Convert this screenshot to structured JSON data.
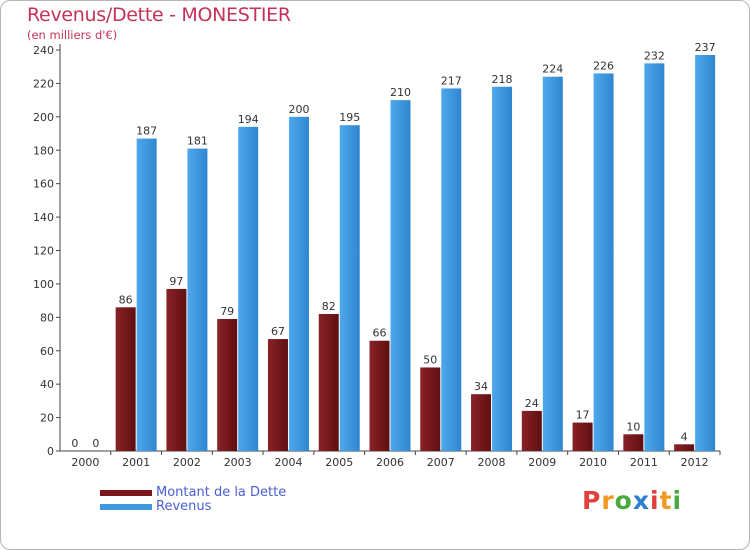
{
  "chart_data": {
    "type": "bar",
    "title": "Revenus/Dette - MONESTIER",
    "subtitle": "(en milliers d'€)",
    "categories": [
      "2000",
      "2001",
      "2002",
      "2003",
      "2004",
      "2005",
      "2006",
      "2007",
      "2008",
      "2009",
      "2010",
      "2011",
      "2012"
    ],
    "series": [
      {
        "name": "Montant de la Dette",
        "color": "#7a1518",
        "values": [
          0,
          86,
          97,
          79,
          67,
          82,
          66,
          50,
          34,
          24,
          17,
          10,
          4
        ]
      },
      {
        "name": "Revenus",
        "color": "#3f98e0",
        "values": [
          0,
          187,
          181,
          194,
          200,
          195,
          210,
          217,
          218,
          224,
          226,
          232,
          237
        ]
      }
    ],
    "ylim": [
      0,
      240
    ],
    "yticks": [
      0,
      20,
      40,
      60,
      80,
      100,
      120,
      140,
      160,
      180,
      200,
      220,
      240
    ],
    "grid": false,
    "legend_position": "bottom-left"
  },
  "legend": {
    "debt_label": "Montant de la Dette",
    "revenue_label": "Revenus"
  },
  "logo": {
    "letters": [
      "P",
      "r",
      "o",
      "x",
      "i",
      "t",
      "i"
    ],
    "colors": [
      "#e2403a",
      "#f29a1f",
      "#4aaa3f",
      "#2c7fd0",
      "#e2403a",
      "#f29a1f",
      "#4aaa3f"
    ]
  }
}
